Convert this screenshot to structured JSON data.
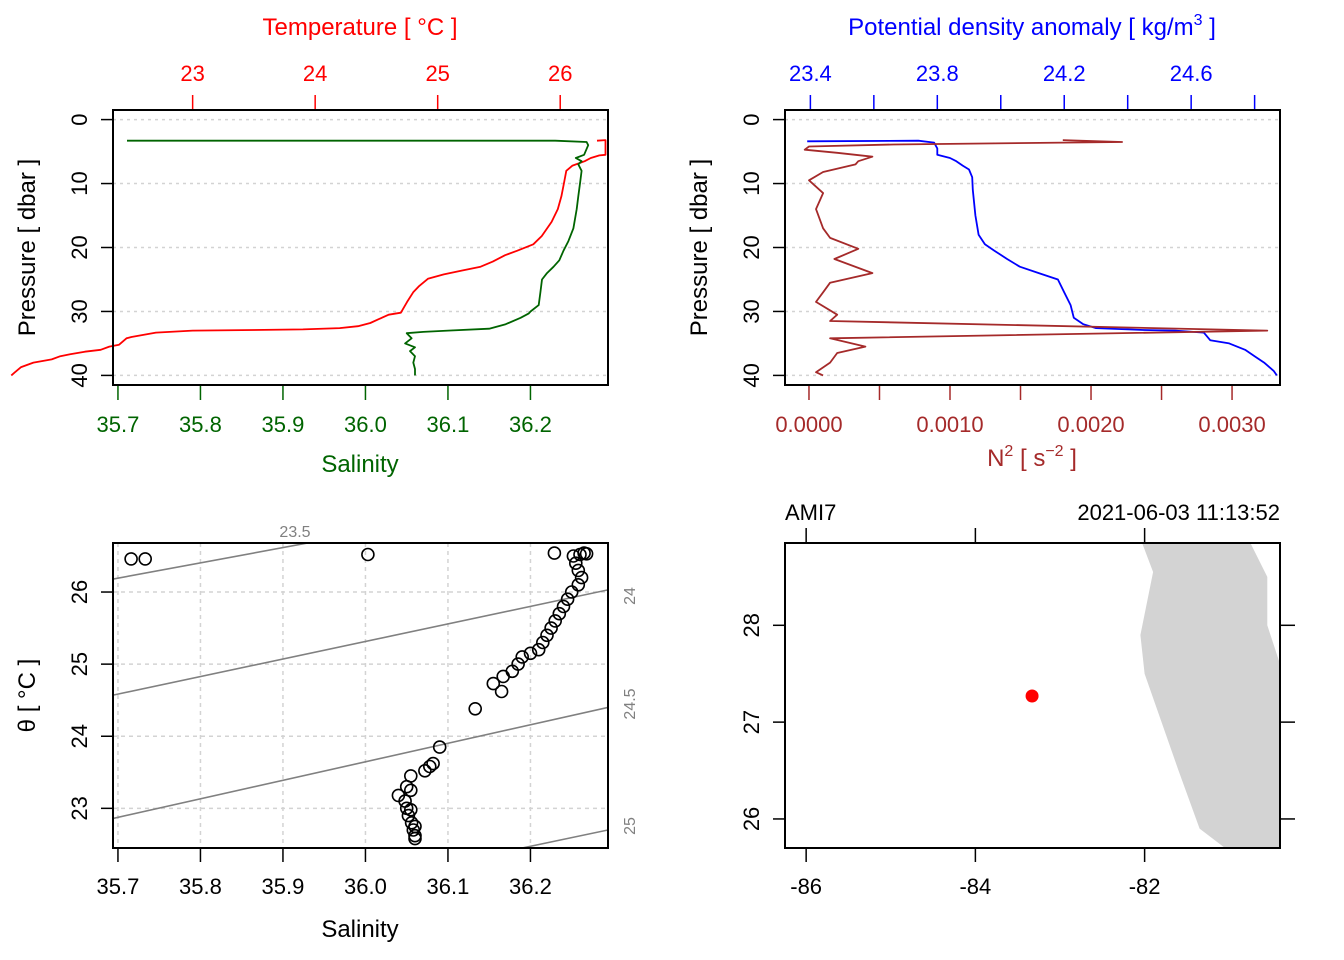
{
  "chart_data": [
    {
      "id": "profile_ts",
      "type": "line",
      "title": "Temperature [ °C ]",
      "top_axis": {
        "label": "Temperature [ °C ]",
        "color": "#ff0000",
        "range": [
          22.35,
          26.39
        ],
        "ticks": [
          23,
          24,
          25,
          26
        ]
      },
      "bottom_axis": {
        "label": "Salinity",
        "color": "#006400",
        "range": [
          35.694,
          36.294
        ],
        "ticks": [
          "35.7",
          "35.8",
          "35.9",
          "36.0",
          "36.1",
          "36.2"
        ]
      },
      "ylabel": "Pressure [ dbar ]",
      "ylim": [
        41.5,
        -1.5
      ],
      "yticks": [
        0,
        10,
        20,
        30,
        40
      ],
      "grid": "horizontal-dotted",
      "series": [
        {
          "name": "Temperature",
          "axis": "top",
          "color": "#ff0000",
          "points": [
            [
              26.3,
              3.3
            ],
            [
              26.37,
              3.2
            ],
            [
              26.37,
              5.5
            ],
            [
              26.32,
              5.6
            ],
            [
              26.25,
              6.0
            ],
            [
              26.2,
              6.5
            ],
            [
              26.1,
              7.2
            ],
            [
              26.05,
              8.0
            ],
            [
              26.03,
              10.0
            ],
            [
              26.01,
              12.0
            ],
            [
              25.98,
              14.0
            ],
            [
              25.93,
              16.0
            ],
            [
              25.85,
              18.2
            ],
            [
              25.78,
              19.5
            ],
            [
              25.65,
              20.5
            ],
            [
              25.55,
              21.2
            ],
            [
              25.45,
              22.2
            ],
            [
              25.35,
              23.0
            ],
            [
              25.2,
              23.6
            ],
            [
              25.05,
              24.2
            ],
            [
              24.92,
              24.9
            ],
            [
              24.85,
              26.0
            ],
            [
              24.8,
              27.0
            ],
            [
              24.75,
              28.5
            ],
            [
              24.72,
              29.5
            ],
            [
              24.7,
              30.2
            ],
            [
              24.6,
              30.5
            ],
            [
              24.52,
              31.2
            ],
            [
              24.45,
              31.8
            ],
            [
              24.35,
              32.3
            ],
            [
              24.2,
              32.6
            ],
            [
              23.9,
              32.8
            ],
            [
              23.5,
              32.9
            ],
            [
              23.0,
              33.0
            ],
            [
              22.7,
              33.3
            ],
            [
              22.5,
              34.0
            ],
            [
              22.46,
              34.2
            ],
            [
              22.4,
              35.2
            ],
            [
              22.32,
              35.5
            ],
            [
              22.25,
              36.0
            ],
            [
              22.12,
              36.3
            ],
            [
              22.0,
              36.7
            ],
            [
              21.92,
              37.0
            ],
            [
              21.85,
              37.5
            ],
            [
              21.7,
              38.0
            ],
            [
              21.6,
              38.7
            ],
            [
              21.55,
              39.5
            ],
            [
              21.52,
              40.0
            ]
          ]
        },
        {
          "name": "Salinity",
          "axis": "bottom",
          "color": "#006400",
          "points": [
            [
              35.711,
              3.3
            ],
            [
              36.23,
              3.3
            ],
            [
              36.268,
              3.5
            ],
            [
              36.27,
              4.0
            ],
            [
              36.265,
              5.5
            ],
            [
              36.255,
              6.0
            ],
            [
              36.262,
              6.5
            ],
            [
              36.258,
              7.0
            ],
            [
              36.262,
              8.0
            ],
            [
              36.26,
              10.0
            ],
            [
              36.258,
              12.0
            ],
            [
              36.256,
              14.0
            ],
            [
              36.252,
              17.0
            ],
            [
              36.246,
              19.0
            ],
            [
              36.24,
              20.5
            ],
            [
              36.235,
              22.0
            ],
            [
              36.228,
              23.0
            ],
            [
              36.22,
              24.0
            ],
            [
              36.214,
              25.0
            ],
            [
              36.212,
              27.0
            ],
            [
              36.21,
              29.0
            ],
            [
              36.2,
              30.0
            ],
            [
              36.198,
              30.3
            ],
            [
              36.188,
              31.0
            ],
            [
              36.17,
              32.0
            ],
            [
              36.15,
              32.7
            ],
            [
              36.1,
              33.0
            ],
            [
              36.07,
              33.2
            ],
            [
              36.05,
              33.4
            ],
            [
              36.056,
              34.2
            ],
            [
              36.048,
              35.0
            ],
            [
              36.06,
              35.6
            ],
            [
              36.054,
              36.2
            ],
            [
              36.06,
              37.0
            ],
            [
              36.058,
              38.0
            ],
            [
              36.06,
              39.0
            ],
            [
              36.06,
              40.0
            ]
          ]
        }
      ]
    },
    {
      "id": "profile_density_n2",
      "type": "line",
      "top_axis": {
        "label": "Potential density anomaly [ kg/m3 ]",
        "color": "#0000ff",
        "range": [
          23.32,
          24.88
        ],
        "ticks": [
          "23.4",
          "23.8",
          "24.2",
          "24.6"
        ],
        "minor_ticks": [
          23.6,
          24.0,
          24.4,
          24.8
        ]
      },
      "bottom_axis": {
        "label": "N2 [ s-2 ]",
        "color": "#a52a2a",
        "range": [
          -0.00017,
          0.00334
        ],
        "ticks": [
          "0.0000",
          "0.0010",
          "0.0020",
          "0.0030"
        ],
        "minor_ticks": [
          0.0005,
          0.0015,
          0.0025
        ]
      },
      "ylabel": "Pressure [ dbar ]",
      "ylim": [
        41.5,
        -1.5
      ],
      "yticks": [
        0,
        10,
        20,
        30,
        40
      ],
      "grid": "horizontal-dotted",
      "series": [
        {
          "name": "Potential density anomaly",
          "axis": "top",
          "color": "#0000ff",
          "points": [
            [
              23.39,
              3.4
            ],
            [
              23.74,
              3.3
            ],
            [
              23.79,
              3.6
            ],
            [
              23.8,
              4.5
            ],
            [
              23.8,
              5.5
            ],
            [
              23.84,
              6.0
            ],
            [
              23.86,
              6.5
            ],
            [
              23.88,
              7.2
            ],
            [
              23.9,
              7.8
            ],
            [
              23.91,
              9.0
            ],
            [
              23.912,
              11.0
            ],
            [
              23.92,
              15.0
            ],
            [
              23.93,
              18.0
            ],
            [
              23.95,
              19.5
            ],
            [
              23.98,
              20.5
            ],
            [
              24.02,
              21.8
            ],
            [
              24.06,
              23.0
            ],
            [
              24.12,
              24.0
            ],
            [
              24.18,
              25.0
            ],
            [
              24.2,
              27.0
            ],
            [
              24.22,
              29.0
            ],
            [
              24.23,
              31.0
            ],
            [
              24.26,
              32.0
            ],
            [
              24.3,
              32.6
            ],
            [
              24.45,
              32.9
            ],
            [
              24.55,
              33.0
            ],
            [
              24.64,
              33.3
            ],
            [
              24.66,
              34.5
            ],
            [
              24.72,
              35.0
            ],
            [
              24.77,
              36.0
            ],
            [
              24.8,
              37.0
            ],
            [
              24.83,
              38.0
            ],
            [
              24.86,
              39.3
            ],
            [
              24.87,
              40.0
            ]
          ]
        },
        {
          "name": "N2",
          "axis": "bottom",
          "color": "#a52a2a",
          "points": [
            [
              0.0018,
              3.2
            ],
            [
              0.00222,
              3.5
            ],
            [
              0.0006,
              3.9
            ],
            [
              0.0,
              4.2
            ],
            [
              -3e-05,
              4.7
            ],
            [
              0.0002,
              5.2
            ],
            [
              0.00045,
              5.8
            ],
            [
              0.00035,
              6.5
            ],
            [
              0.00033,
              7.0
            ],
            [
              0.0001,
              8.2
            ],
            [
              0.0,
              9.5
            ],
            [
              0.0001,
              11.5
            ],
            [
              5e-05,
              14.0
            ],
            [
              0.0001,
              17.0
            ],
            [
              0.00015,
              18.5
            ],
            [
              0.00035,
              20.2
            ],
            [
              0.00018,
              21.8
            ],
            [
              0.00045,
              24.0
            ],
            [
              0.00015,
              25.5
            ],
            [
              0.0001,
              27.0
            ],
            [
              5e-05,
              28.5
            ],
            [
              0.0002,
              30.5
            ],
            [
              0.00015,
              31.5
            ],
            [
              0.00325,
              33.0
            ],
            [
              0.00015,
              34.2
            ],
            [
              0.0004,
              35.5
            ],
            [
              0.0002,
              36.5
            ],
            [
              0.00015,
              38.0
            ],
            [
              5e-05,
              39.5
            ],
            [
              0.0001,
              40.0
            ]
          ]
        }
      ]
    },
    {
      "id": "ts_diagram",
      "type": "scatter",
      "xlabel": "Salinity",
      "ylabel": "θ [ °C ]",
      "xlim": [
        35.694,
        36.294
      ],
      "ylim": [
        22.45,
        26.68
      ],
      "xticks": [
        "35.7",
        "35.8",
        "35.9",
        "36.0",
        "36.1",
        "36.2"
      ],
      "yticks": [
        23,
        24,
        25,
        26
      ],
      "grid": "dashed",
      "isopycnals": [
        {
          "label": "23.5",
          "points": [
            [
              35.694,
              26.18
            ],
            [
              35.93,
              26.68
            ]
          ]
        },
        {
          "label": "24",
          "points": [
            [
              35.694,
              24.57
            ],
            [
              36.294,
              26.03
            ]
          ]
        },
        {
          "label": "24.5",
          "points": [
            [
              35.694,
              22.86
            ],
            [
              36.294,
              24.4
            ]
          ]
        },
        {
          "label": "25",
          "points": [
            [
              36.19,
              22.45
            ],
            [
              36.294,
              22.7
            ]
          ]
        }
      ],
      "points": [
        [
          35.716,
          26.46
        ],
        [
          35.733,
          26.46
        ],
        [
          36.003,
          26.52
        ],
        [
          36.229,
          26.54
        ],
        [
          36.252,
          26.5
        ],
        [
          36.26,
          26.52
        ],
        [
          36.265,
          26.54
        ],
        [
          36.268,
          26.53
        ],
        [
          36.255,
          26.4
        ],
        [
          36.258,
          26.3
        ],
        [
          36.262,
          26.2
        ],
        [
          36.258,
          26.1
        ],
        [
          36.25,
          26.0
        ],
        [
          36.245,
          25.9
        ],
        [
          36.24,
          25.8
        ],
        [
          36.235,
          25.7
        ],
        [
          36.23,
          25.6
        ],
        [
          36.225,
          25.5
        ],
        [
          36.22,
          25.4
        ],
        [
          36.215,
          25.3
        ],
        [
          36.21,
          25.2
        ],
        [
          36.2,
          25.15
        ],
        [
          36.19,
          25.1
        ],
        [
          36.185,
          25.0
        ],
        [
          36.178,
          24.9
        ],
        [
          36.167,
          24.83
        ],
        [
          36.155,
          24.73
        ],
        [
          36.165,
          24.62
        ],
        [
          36.133,
          24.38
        ],
        [
          36.09,
          23.85
        ],
        [
          36.082,
          23.62
        ],
        [
          36.078,
          23.58
        ],
        [
          36.072,
          23.52
        ],
        [
          36.055,
          23.45
        ],
        [
          36.05,
          23.3
        ],
        [
          36.055,
          23.25
        ],
        [
          36.04,
          23.18
        ],
        [
          36.048,
          23.1
        ],
        [
          36.05,
          23.0
        ],
        [
          36.055,
          22.98
        ],
        [
          36.052,
          22.9
        ],
        [
          36.056,
          22.8
        ],
        [
          36.06,
          22.75
        ],
        [
          36.058,
          22.7
        ],
        [
          36.06,
          22.62
        ],
        [
          36.06,
          22.58
        ]
      ]
    },
    {
      "id": "station_map",
      "type": "map",
      "station": "AMI7",
      "datetime": "2021-06-03 11:13:52",
      "xlim": [
        -86.25,
        -80.4
      ],
      "ylim": [
        25.7,
        28.85
      ],
      "xticks": [
        "-86",
        "-84",
        "-82"
      ],
      "yticks": [
        "26",
        "27",
        "28"
      ],
      "station_position": {
        "lon": -83.33,
        "lat": 27.27
      },
      "station_color": "#ff0000",
      "land_color": "#d3d3d3",
      "land_polygon": [
        [
          -82.03,
          28.85
        ],
        [
          -81.9,
          28.55
        ],
        [
          -82.05,
          27.9
        ],
        [
          -82.0,
          27.5
        ],
        [
          -81.6,
          26.5
        ],
        [
          -81.35,
          25.9
        ],
        [
          -81.05,
          25.7
        ],
        [
          -80.4,
          25.7
        ],
        [
          -80.4,
          27.6
        ],
        [
          -80.55,
          28.0
        ],
        [
          -80.55,
          28.5
        ],
        [
          -80.75,
          28.85
        ]
      ]
    }
  ]
}
